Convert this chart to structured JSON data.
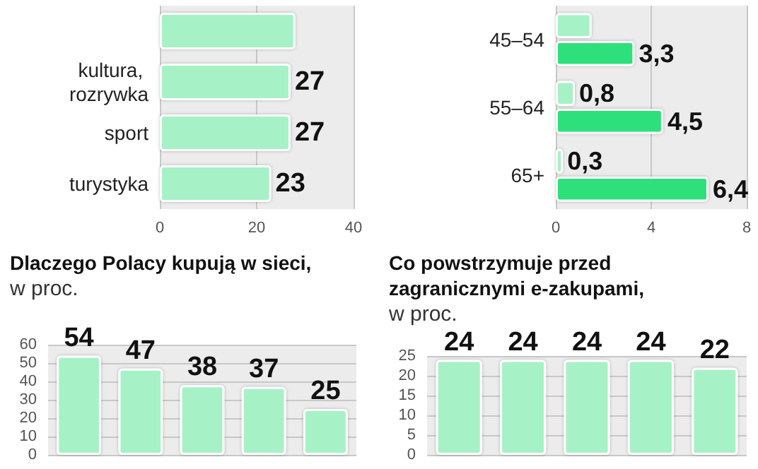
{
  "chart_data": [
    {
      "type": "bar",
      "orientation": "horizontal",
      "categories": [
        null,
        "kultura, rozrywka",
        "sport",
        "turystyka"
      ],
      "values": [
        28,
        27,
        27,
        23
      ],
      "value_labels": [
        null,
        "27",
        "27",
        "23"
      ],
      "color": "#a6f2c6",
      "xlim": [
        0,
        40
      ],
      "xticks": [
        0,
        20,
        40
      ],
      "grid": "x"
    },
    {
      "type": "bar",
      "orientation": "horizontal",
      "categories": [
        "45–54",
        "55–64",
        "65+"
      ],
      "series": [
        {
          "color": "#a6f2c6",
          "values": [
            1.5,
            0.8,
            0.3
          ],
          "value_labels": [
            null,
            "0,8",
            "0,3"
          ]
        },
        {
          "color": "#2fe07c",
          "values": [
            3.3,
            4.5,
            6.4
          ],
          "value_labels": [
            "3,3",
            "4,5",
            "6,4"
          ]
        }
      ],
      "xlim": [
        0,
        8
      ],
      "xticks": [
        0,
        4,
        8
      ],
      "grid": "x"
    },
    {
      "type": "bar",
      "title": "Dlaczego Polacy kupują w sieci,",
      "subtitle": "w proc.",
      "categories": [
        null,
        null,
        null,
        null,
        null
      ],
      "values": [
        54,
        47,
        38,
        37,
        25
      ],
      "data_labels": true,
      "color": "#a6f2c6",
      "ylim": [
        0,
        60
      ],
      "yticks": [
        0,
        10,
        20,
        30,
        40,
        50,
        60
      ],
      "grid": "y"
    },
    {
      "type": "bar",
      "title": "Co powstrzymuje przed zagranicznymi e-zakupami,",
      "subtitle": "w proc.",
      "categories": [
        null,
        null,
        null,
        null,
        null
      ],
      "values": [
        24,
        24,
        24,
        24,
        22
      ],
      "data_labels": true,
      "color": "#a6f2c6",
      "ylim": [
        0,
        25
      ],
      "yticks": [
        0,
        5,
        10,
        15,
        20,
        25
      ],
      "grid": "y"
    }
  ]
}
